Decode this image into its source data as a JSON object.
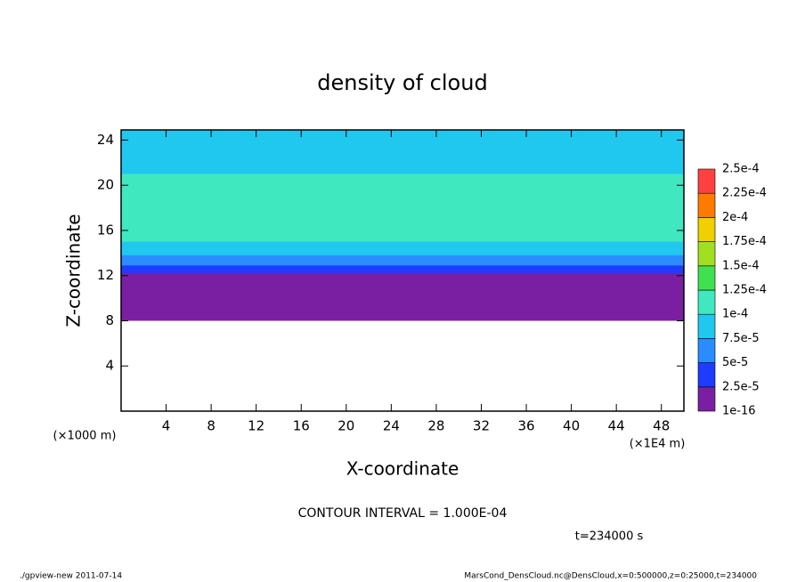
{
  "chart_data": {
    "type": "heatmap",
    "title": "density of cloud",
    "x_label": "X-coordinate",
    "y_label": "Z-coordinate",
    "x_unit": "(×1E4 m)",
    "y_unit": "(×1000 m)",
    "xlim": [
      0,
      50
    ],
    "ylim": [
      0,
      24.9
    ],
    "xticks": [
      4,
      8,
      12,
      16,
      20,
      24,
      28,
      32,
      36,
      40,
      44,
      48
    ],
    "yticks": [
      4,
      8,
      12,
      16,
      20,
      24
    ],
    "levels": [
      {
        "value": 1e-16,
        "label": "1e-16"
      },
      {
        "value": 2.5e-05,
        "label": "2.5e-5"
      },
      {
        "value": 5e-05,
        "label": "5e-5"
      },
      {
        "value": 7.5e-05,
        "label": "7.5e-5"
      },
      {
        "value": 0.0001,
        "label": "1e-4"
      },
      {
        "value": 0.000125,
        "label": "1.25e-4"
      },
      {
        "value": 0.00015,
        "label": "1.5e-4"
      },
      {
        "value": 0.000175,
        "label": "1.75e-4"
      },
      {
        "value": 0.0002,
        "label": "2e-4"
      },
      {
        "value": 0.000225,
        "label": "2.25e-4"
      },
      {
        "value": 0.00025,
        "label": "2.5e-4"
      }
    ],
    "colors": [
      "#7b1fa2",
      "#1e3cff",
      "#2a8cff",
      "#20c8f0",
      "#40e8c0",
      "#40e050",
      "#a0e020",
      "#f0d000",
      "#ff7a00",
      "#ff4040"
    ],
    "field_bands": [
      {
        "level": 3,
        "z": [
          13.5,
          24.9
        ]
      },
      {
        "level": 4,
        "z": [
          15,
          21
        ]
      },
      {
        "level": 2,
        "z": [
          12.8,
          13.8
        ]
      },
      {
        "level": 1,
        "z": [
          12,
          12.9
        ]
      },
      {
        "level": 0,
        "z": [
          8,
          12.2
        ]
      }
    ],
    "contour_interval": "CONTOUR INTERVAL = 1.000E-04",
    "time_label": "t=234000 s",
    "footer_left": "./gpview-new  2011-07-14",
    "footer_right": "MarsCond_DensCloud.nc@DensCloud,x=0:500000,z=0:25000,t=234000"
  }
}
